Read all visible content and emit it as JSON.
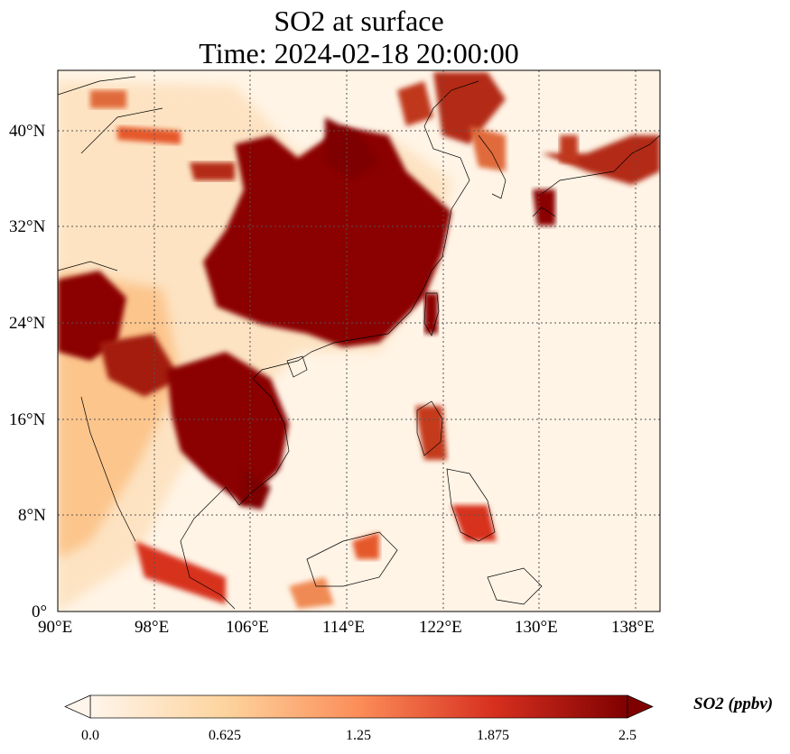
{
  "title": {
    "line1": "SO2 at surface",
    "line2": "Time: 2024-02-18 20:00:00"
  },
  "map": {
    "lon_range": [
      90,
      140
    ],
    "lat_range": [
      0,
      45
    ],
    "lon_ticks": [
      "90°E",
      "98°E",
      "106°E",
      "114°E",
      "122°E",
      "130°E",
      "138°E"
    ],
    "lat_ticks": [
      "0°",
      "8°N",
      "16°N",
      "24°N",
      "32°N",
      "40°N"
    ],
    "gridline_style": "dotted"
  },
  "colorbar": {
    "label": "SO2 (ppbv)",
    "ticks": [
      "0.0",
      "0.625",
      "1.25",
      "1.875",
      "2.5"
    ],
    "min": 0.0,
    "max": 2.5,
    "colormap": [
      "#fff5eb",
      "#fdd49e",
      "#fc8d59",
      "#d7301f",
      "#7f0000"
    ],
    "extend": "both"
  }
}
